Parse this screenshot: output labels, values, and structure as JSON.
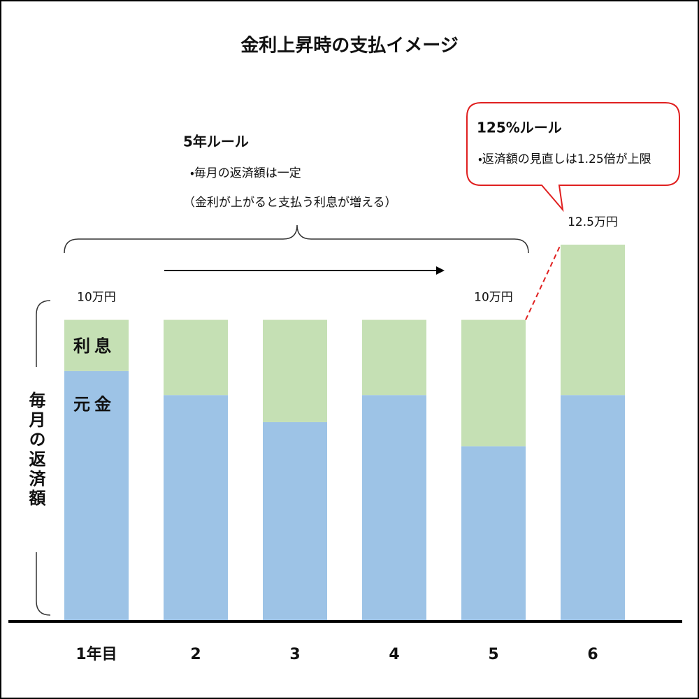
{
  "chart_data": {
    "type": "stacked-bar",
    "title": "金利上昇時の支払イメージ",
    "y_label": "毎月の返済額",
    "categories": [
      "1年目",
      "2",
      "3",
      "4",
      "5",
      "6"
    ],
    "series": [
      {
        "name": "元金",
        "color": "#9dc3e6",
        "values": [
          8.3,
          7.5,
          6.6,
          7.5,
          5.8,
          7.5
        ]
      },
      {
        "name": "利息",
        "color": "#c5e0b4",
        "values": [
          1.7,
          2.5,
          3.4,
          2.5,
          4.2,
          5.0
        ]
      }
    ],
    "annotations": [
      {
        "text": "10万円",
        "category": "1年目"
      },
      {
        "text": "10万円",
        "category": "5"
      },
      {
        "text": "12.5万円",
        "category": "6"
      }
    ],
    "rule_5year": {
      "heading": "5年ルール",
      "lines": [
        "・毎月の返済額は一定",
        "（金利が上がると支払う利息が増える）"
      ]
    },
    "rule_125": {
      "heading": "125%ルール",
      "lines": [
        "・返済額の見直しは1.25倍が上限"
      ]
    }
  }
}
